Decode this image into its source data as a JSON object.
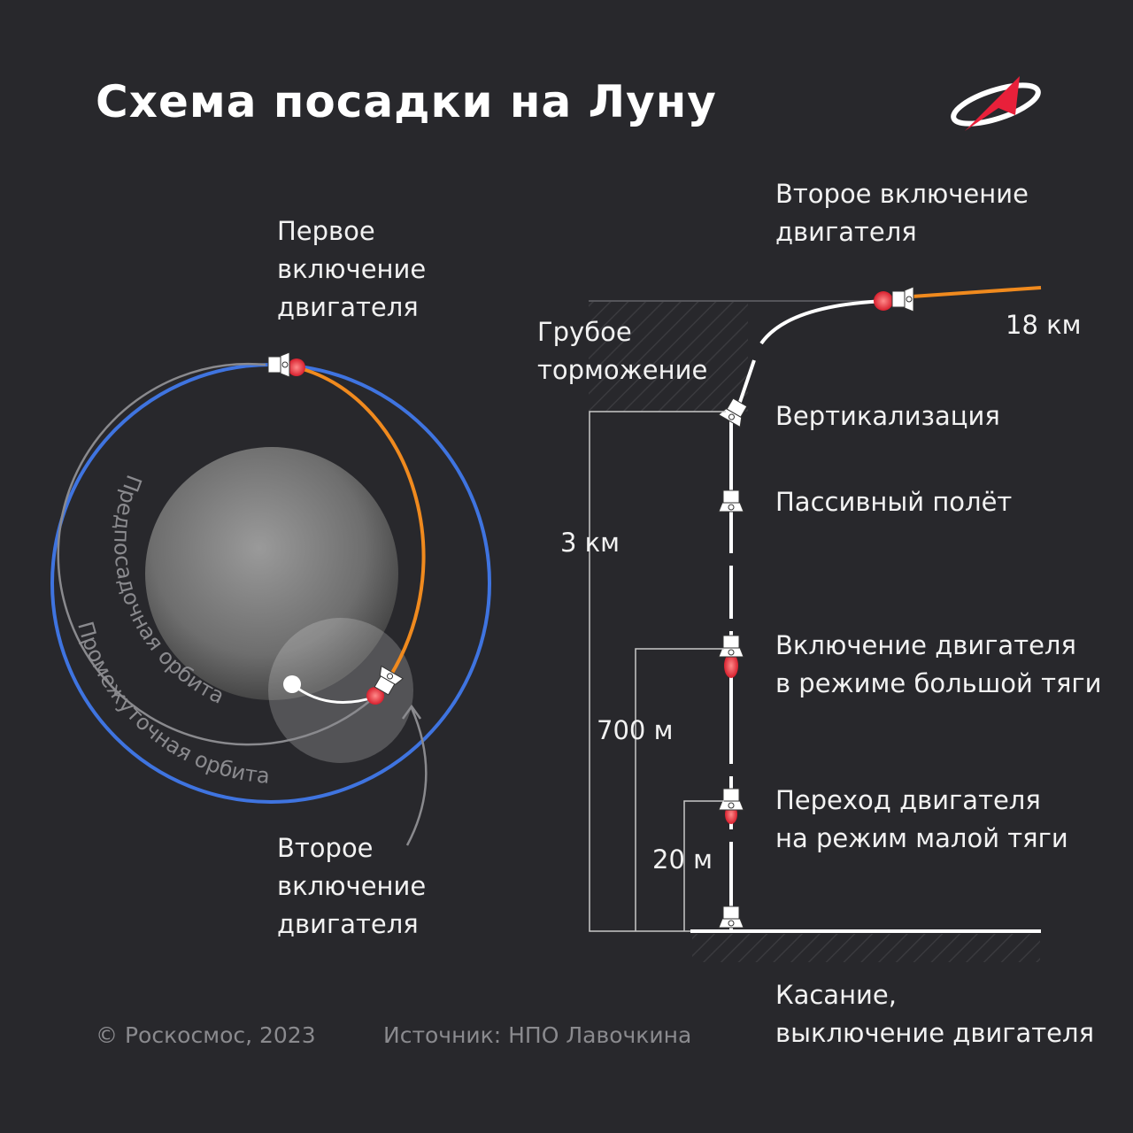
{
  "title": "Схема посадки на Луну",
  "logo": {
    "name": "roscosmos-logo",
    "colors": {
      "swoosh": "#ffffff",
      "arrow": "#e8203a"
    }
  },
  "orbit_view": {
    "first_burn": "Первое\nвключение\nдвигателя",
    "second_burn": "Второе\nвключение\nдвигателя",
    "prelanding_orbit": "Предпосадочная орбита",
    "intermediate_orbit": "Промежуточная орбита"
  },
  "descent_view": {
    "second_burn": "Второе включение\nдвигателя",
    "coarse_braking": "Грубое\nторможение",
    "altitude_18": "18 км",
    "verticalization": "Вертикализация",
    "passive_flight": "Пассивный полёт",
    "altitude_3": "3 км",
    "high_thrust": "Включение двигателя\nв режиме большой тяги",
    "altitude_700": "700 м",
    "low_thrust": "Переход двигателя\nна режим малой тяги",
    "altitude_20": "20 м",
    "touchdown": "Касание,\nвыключение двигателя"
  },
  "footer": {
    "copyright": "© Роскосмос, 2023",
    "source": "Источник: НПО Лавочкина"
  },
  "colors": {
    "background": "#28282c",
    "intermediate_orbit": "#3f74e0",
    "transfer": "#f08a1e",
    "engine_flame": "#e8283a",
    "prelanding_orbit": "#8a8a8e"
  }
}
